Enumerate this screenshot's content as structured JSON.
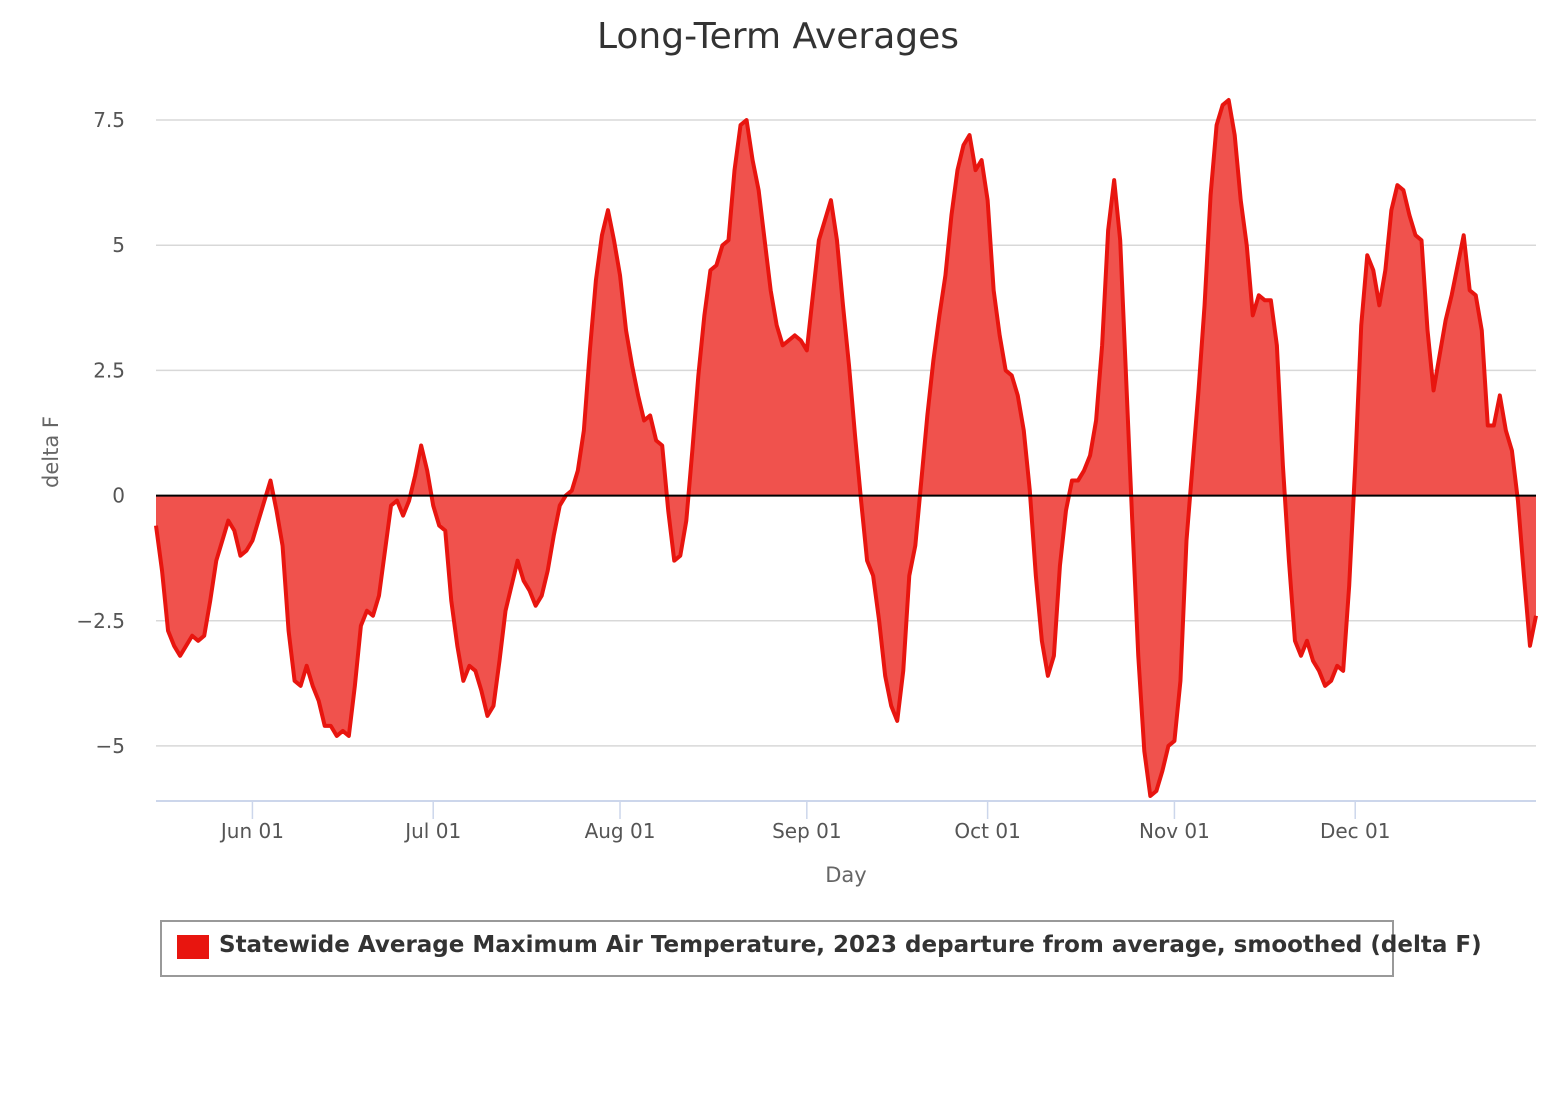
{
  "chart_data": {
    "type": "area",
    "title": "Long-Term Averages",
    "xlabel": "Day",
    "ylabel": "delta F",
    "ylim": [
      -6.1,
      8.4
    ],
    "y_ticks": [
      7.5,
      5,
      2.5,
      0,
      -2.5,
      -5
    ],
    "y_tick_labels": [
      "7.5",
      "5",
      "2.5",
      "0",
      "−2.5",
      "−5"
    ],
    "x_tick_labels": [
      "Jun 01",
      "Jul 01",
      "Aug 01",
      "Sep 01",
      "Oct 01",
      "Nov 01",
      "Dec 01"
    ],
    "x_tick_dates": [
      "2023-06-01",
      "2023-07-01",
      "2023-08-01",
      "2023-09-01",
      "2023-10-01",
      "2023-11-01",
      "2023-12-01"
    ],
    "x_range": [
      "2023-05-16",
      "2023-12-31"
    ],
    "grid": true,
    "legend_position": "bottom",
    "colors": {
      "line": "#e8150f",
      "fill": "#f0524d",
      "zero_line": "#000000",
      "grid": "#d8d8d8"
    },
    "series": [
      {
        "name": "Statewide Average Maximum Air Temperature, 2023 departure from average, smoothed (delta F)",
        "x": [
          "2023-05-16",
          "2023-05-17",
          "2023-05-18",
          "2023-05-19",
          "2023-05-20",
          "2023-05-21",
          "2023-05-22",
          "2023-05-23",
          "2023-05-24",
          "2023-05-25",
          "2023-05-26",
          "2023-05-27",
          "2023-05-28",
          "2023-05-29",
          "2023-05-30",
          "2023-05-31",
          "2023-06-01",
          "2023-06-02",
          "2023-06-03",
          "2023-06-04",
          "2023-06-05",
          "2023-06-06",
          "2023-06-07",
          "2023-06-08",
          "2023-06-09",
          "2023-06-10",
          "2023-06-11",
          "2023-06-12",
          "2023-06-13",
          "2023-06-14",
          "2023-06-15",
          "2023-06-16",
          "2023-06-17",
          "2023-06-18",
          "2023-06-19",
          "2023-06-20",
          "2023-06-21",
          "2023-06-22",
          "2023-06-23",
          "2023-06-24",
          "2023-06-25",
          "2023-06-26",
          "2023-06-27",
          "2023-06-28",
          "2023-06-29",
          "2023-06-30",
          "2023-07-01",
          "2023-07-02",
          "2023-07-03",
          "2023-07-04",
          "2023-07-05",
          "2023-07-06",
          "2023-07-07",
          "2023-07-08",
          "2023-07-09",
          "2023-07-10",
          "2023-07-11",
          "2023-07-12",
          "2023-07-13",
          "2023-07-14",
          "2023-07-15",
          "2023-07-16",
          "2023-07-17",
          "2023-07-18",
          "2023-07-19",
          "2023-07-20",
          "2023-07-21",
          "2023-07-22",
          "2023-07-23",
          "2023-07-24",
          "2023-07-25",
          "2023-07-26",
          "2023-07-27",
          "2023-07-28",
          "2023-07-29",
          "2023-07-30",
          "2023-07-31",
          "2023-08-01",
          "2023-08-02",
          "2023-08-03",
          "2023-08-04",
          "2023-08-05",
          "2023-08-06",
          "2023-08-07",
          "2023-08-08",
          "2023-08-09",
          "2023-08-10",
          "2023-08-11",
          "2023-08-12",
          "2023-08-13",
          "2023-08-14",
          "2023-08-15",
          "2023-08-16",
          "2023-08-17",
          "2023-08-18",
          "2023-08-19",
          "2023-08-20",
          "2023-08-21",
          "2023-08-22",
          "2023-08-23",
          "2023-08-24",
          "2023-08-25",
          "2023-08-26",
          "2023-08-27",
          "2023-08-28",
          "2023-08-29",
          "2023-08-30",
          "2023-08-31",
          "2023-09-01",
          "2023-09-02",
          "2023-09-03",
          "2023-09-04",
          "2023-09-05",
          "2023-09-06",
          "2023-09-07",
          "2023-09-08",
          "2023-09-09",
          "2023-09-10",
          "2023-09-11",
          "2023-09-12",
          "2023-09-13",
          "2023-09-14",
          "2023-09-15",
          "2023-09-16",
          "2023-09-17",
          "2023-09-18",
          "2023-09-19",
          "2023-09-20",
          "2023-09-21",
          "2023-09-22",
          "2023-09-23",
          "2023-09-24",
          "2023-09-25",
          "2023-09-26",
          "2023-09-27",
          "2023-09-28",
          "2023-09-29",
          "2023-09-30",
          "2023-10-01",
          "2023-10-02",
          "2023-10-03",
          "2023-10-04",
          "2023-10-05",
          "2023-10-06",
          "2023-10-07",
          "2023-10-08",
          "2023-10-09",
          "2023-10-10",
          "2023-10-11",
          "2023-10-12",
          "2023-10-13",
          "2023-10-14",
          "2023-10-15",
          "2023-10-16",
          "2023-10-17",
          "2023-10-18",
          "2023-10-19",
          "2023-10-20",
          "2023-10-21",
          "2023-10-22",
          "2023-10-23",
          "2023-10-24",
          "2023-10-25",
          "2023-10-26",
          "2023-10-27",
          "2023-10-28",
          "2023-10-29",
          "2023-10-30",
          "2023-10-31",
          "2023-11-01",
          "2023-11-02",
          "2023-11-03",
          "2023-11-04",
          "2023-11-05",
          "2023-11-06",
          "2023-11-07",
          "2023-11-08",
          "2023-11-09",
          "2023-11-10",
          "2023-11-11",
          "2023-11-12",
          "2023-11-13",
          "2023-11-14",
          "2023-11-15",
          "2023-11-16",
          "2023-11-17",
          "2023-11-18",
          "2023-11-19",
          "2023-11-20",
          "2023-11-21",
          "2023-11-22",
          "2023-11-23",
          "2023-11-24",
          "2023-11-25",
          "2023-11-26",
          "2023-11-27",
          "2023-11-28",
          "2023-11-29",
          "2023-11-30",
          "2023-12-01",
          "2023-12-02",
          "2023-12-03",
          "2023-12-04",
          "2023-12-05",
          "2023-12-06",
          "2023-12-07",
          "2023-12-08",
          "2023-12-09",
          "2023-12-10",
          "2023-12-11",
          "2023-12-12",
          "2023-12-13",
          "2023-12-14",
          "2023-12-15",
          "2023-12-16",
          "2023-12-17",
          "2023-12-18",
          "2023-12-19",
          "2023-12-20",
          "2023-12-21",
          "2023-12-22",
          "2023-12-23",
          "2023-12-24",
          "2023-12-25",
          "2023-12-26",
          "2023-12-27",
          "2023-12-28",
          "2023-12-29",
          "2023-12-30",
          "2023-12-31"
        ],
        "values": [
          -0.6,
          -1.5,
          -2.7,
          -3.0,
          -3.2,
          -3.0,
          -2.8,
          -2.9,
          -2.8,
          -2.1,
          -1.3,
          -0.9,
          -0.5,
          -0.7,
          -1.2,
          -1.1,
          -0.9,
          -0.5,
          -0.1,
          0.3,
          -0.3,
          -1.0,
          -2.7,
          -3.7,
          -3.8,
          -3.4,
          -3.8,
          -4.1,
          -4.6,
          -4.6,
          -4.8,
          -4.7,
          -4.8,
          -3.8,
          -2.6,
          -2.3,
          -2.4,
          -2.0,
          -1.1,
          -0.2,
          -0.1,
          -0.4,
          -0.1,
          0.4,
          1.0,
          0.5,
          -0.2,
          -0.6,
          -0.7,
          -2.1,
          -3.0,
          -3.7,
          -3.4,
          -3.5,
          -3.9,
          -4.4,
          -4.2,
          -3.3,
          -2.3,
          -1.8,
          -1.3,
          -1.7,
          -1.9,
          -2.2,
          -2.0,
          -1.5,
          -0.8,
          -0.2,
          0.0,
          0.1,
          0.5,
          1.3,
          2.9,
          4.3,
          5.2,
          5.7,
          5.1,
          4.4,
          3.3,
          2.6,
          2.0,
          1.5,
          1.6,
          1.1,
          1.0,
          -0.3,
          -1.3,
          -1.2,
          -0.5,
          0.9,
          2.4,
          3.6,
          4.5,
          4.6,
          5.0,
          5.1,
          6.5,
          7.4,
          7.5,
          6.7,
          6.1,
          5.1,
          4.1,
          3.4,
          3.0,
          3.1,
          3.2,
          3.1,
          2.9,
          4.0,
          5.1,
          5.5,
          5.9,
          5.1,
          3.8,
          2.6,
          1.2,
          -0.1,
          -1.3,
          -1.6,
          -2.5,
          -3.6,
          -4.2,
          -4.5,
          -3.5,
          -1.6,
          -1.0,
          0.3,
          1.6,
          2.7,
          3.6,
          4.4,
          5.6,
          6.5,
          7.0,
          7.2,
          6.5,
          6.7,
          5.9,
          4.1,
          3.2,
          2.5,
          2.4,
          2.0,
          1.3,
          0.1,
          -1.6,
          -2.9,
          -3.6,
          -3.2,
          -1.4,
          -0.3,
          0.3,
          0.3,
          0.5,
          0.8,
          1.5,
          3.0,
          5.3,
          6.3,
          5.1,
          2.3,
          -0.5,
          -3.2,
          -5.1,
          -6.0,
          -5.9,
          -5.5,
          -5.0,
          -4.9,
          -3.7,
          -0.9,
          0.6,
          2.1,
          3.8,
          6.0,
          7.4,
          7.8,
          7.9,
          7.2,
          5.9,
          5.0,
          3.6,
          4.0,
          3.9,
          3.9,
          3.0,
          0.6,
          -1.3,
          -2.9,
          -3.2,
          -2.9,
          -3.3,
          -3.5,
          -3.8,
          -3.7,
          -3.4,
          -3.5,
          -1.8,
          0.6,
          3.4,
          4.8,
          4.5,
          3.8,
          4.5,
          5.7,
          6.2,
          6.1,
          5.6,
          5.2,
          5.1,
          3.3,
          2.1,
          2.8,
          3.5,
          4.0,
          4.6,
          5.2,
          4.1,
          4.0,
          3.3,
          1.4,
          1.4,
          2.0,
          1.3,
          0.9,
          -0.1,
          -1.6,
          -3.0,
          -2.4
        ]
      }
    ]
  }
}
